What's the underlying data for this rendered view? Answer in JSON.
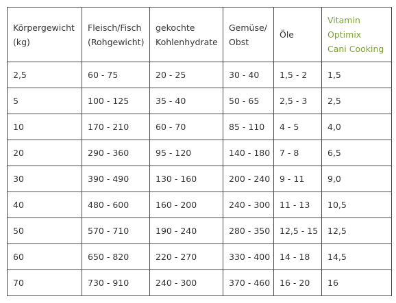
{
  "colors": {
    "text": "#333333",
    "accent": "#7ba22f",
    "border": "#4a4a4a"
  },
  "table": {
    "headers": [
      {
        "lines": [
          "Körpergewicht",
          "(kg)"
        ]
      },
      {
        "lines": [
          "Fleisch/Fisch",
          "(Rohgewicht)"
        ]
      },
      {
        "lines": [
          "gekochte",
          "Kohlenhydrate"
        ]
      },
      {
        "lines": [
          "Gemüse/",
          "Obst"
        ]
      },
      {
        "lines": [
          "Öle"
        ]
      },
      {
        "lines": [
          "Vitamin",
          "Optimix",
          "Cani Cooking"
        ],
        "accent": true
      }
    ],
    "rows": [
      [
        "2,5",
        "60 - 75",
        "20 - 25",
        "30 - 40",
        "1,5 - 2",
        "1,5"
      ],
      [
        "5",
        "100 - 125",
        "35 - 40",
        "50 - 65",
        "2,5 - 3",
        "2,5"
      ],
      [
        "10",
        "170 - 210",
        "60 - 70",
        "85 - 110",
        "4 - 5",
        "4,0"
      ],
      [
        "20",
        "290 - 360",
        "95 - 120",
        "140 - 180",
        "7 - 8",
        "6,5"
      ],
      [
        "30",
        "390 - 490",
        "130 - 160",
        "200 - 240",
        "9 - 11",
        "9,0"
      ],
      [
        "40",
        "480 - 600",
        "160 - 200",
        "240 - 300",
        "11 - 13",
        "10,5"
      ],
      [
        "50",
        "570 - 710",
        "190 - 240",
        "280 - 350",
        "12,5 - 15",
        "12,5"
      ],
      [
        "60",
        "650 - 820",
        "220 - 270",
        "330 - 400",
        "14 - 18",
        "14,5"
      ],
      [
        "70",
        "730 - 910",
        "240 - 300",
        "370 - 460",
        "16 - 20",
        "16"
      ]
    ]
  }
}
